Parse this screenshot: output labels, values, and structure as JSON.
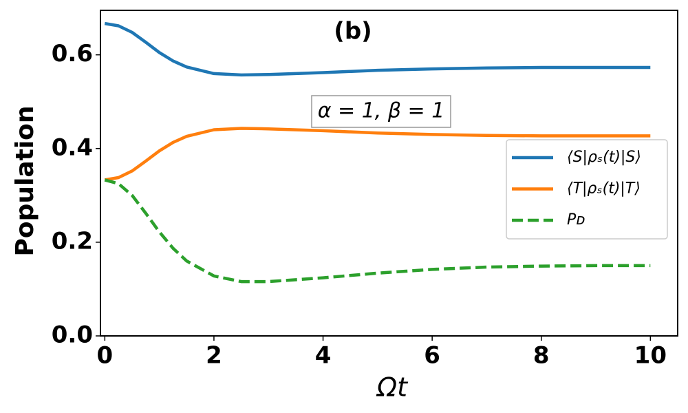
{
  "chart_data": {
    "type": "line",
    "annotations": [
      "(b)",
      "α = 1, β = 1"
    ],
    "xlabel": "Ωt",
    "ylabel": "Population",
    "x": [
      0,
      0.25,
      0.5,
      0.75,
      1,
      1.25,
      1.5,
      2,
      2.5,
      3,
      4,
      5,
      6,
      7,
      8,
      9,
      10
    ],
    "series": [
      {
        "name": "⟨S|ρₛ(t)|S⟩",
        "color": "#1f77b4",
        "dash": false,
        "values": [
          0.667,
          0.662,
          0.648,
          0.627,
          0.605,
          0.587,
          0.574,
          0.56,
          0.557,
          0.558,
          0.562,
          0.567,
          0.57,
          0.572,
          0.573,
          0.573,
          0.573
        ]
      },
      {
        "name": "⟨T|ρₛ(t)|T⟩",
        "color": "#ff7f0e",
        "dash": false,
        "values": [
          0.333,
          0.338,
          0.352,
          0.373,
          0.395,
          0.413,
          0.426,
          0.44,
          0.443,
          0.442,
          0.438,
          0.433,
          0.43,
          0.428,
          0.427,
          0.427,
          0.427
        ]
      },
      {
        "name": "Pᴅ",
        "color": "#2ca02c",
        "dash": true,
        "values": [
          0.333,
          0.325,
          0.3,
          0.262,
          0.222,
          0.187,
          0.16,
          0.128,
          0.116,
          0.116,
          0.124,
          0.134,
          0.142,
          0.147,
          0.149,
          0.15,
          0.15
        ]
      }
    ],
    "xlim": [
      -0.08,
      10.5
    ],
    "ylim": [
      0,
      0.695
    ],
    "xticks": [
      0,
      2,
      4,
      6,
      8,
      10
    ],
    "yticks": [
      {
        "value": 0,
        "label": "0.0"
      },
      0.2,
      0.4,
      0.6
    ],
    "grid": false,
    "legend": "right"
  }
}
